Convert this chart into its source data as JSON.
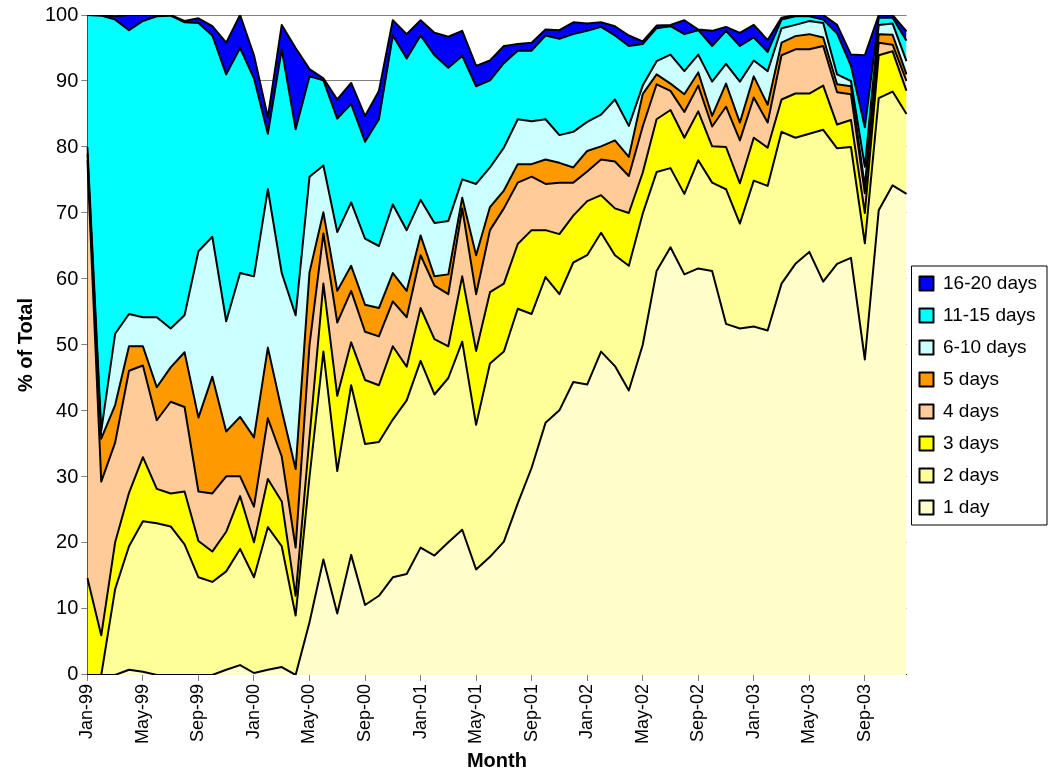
{
  "chart_data": {
    "type": "area",
    "stacked": true,
    "xlabel": "Month",
    "ylabel": "% of Total",
    "legend": "right",
    "grid": "y",
    "line_style": "solid",
    "marker": "none",
    "categories": [
      "Jan-99",
      null,
      null,
      null,
      "May-99",
      null,
      null,
      null,
      "Sep-99",
      null,
      null,
      null,
      "Jan-00",
      null,
      null,
      null,
      "May-00",
      null,
      null,
      null,
      "Sep-00",
      null,
      null,
      null,
      "Jan-01",
      null,
      null,
      null,
      "May-01",
      null,
      null,
      null,
      "Sep-01",
      null,
      null,
      null,
      "Jan-02",
      null,
      null,
      null,
      "May-02",
      null,
      null,
      null,
      "Sep-02",
      null,
      null,
      null,
      "Jan-03",
      null,
      null,
      null,
      "May-03",
      null,
      null,
      null,
      "Sep-03",
      null,
      null,
      null
    ],
    "ylim": [
      0,
      100
    ],
    "yticks": [
      0,
      10,
      20,
      30,
      40,
      50,
      60,
      70,
      80,
      90,
      100
    ],
    "series": [
      {
        "name": "1 day",
        "color": "#ffffcc",
        "values": [
          0,
          0,
          0,
          0.8,
          0.5,
          0,
          0,
          0,
          0,
          0,
          0.8,
          1.5,
          0.3,
          0.8,
          1.2,
          0,
          8,
          17.5,
          9.3,
          18.2,
          10.6,
          12,
          14.8,
          15.3,
          19.3,
          18.1,
          20.1,
          22,
          16,
          17.9,
          20.2,
          26,
          31.4,
          38.2,
          40.1,
          44.4,
          44,
          49,
          46.8,
          43.1,
          50,
          61.2,
          64.8,
          60.7,
          61.6,
          61.2,
          53.2,
          52.5,
          52.8,
          52.2,
          59.3,
          62.3,
          64.1,
          59.6,
          62.3,
          63.2,
          47.8,
          70.4,
          74.2,
          72.9
        ]
      },
      {
        "name": "2 days",
        "color": "#ffff99",
        "values": [
          0,
          0,
          13,
          18.7,
          22.8,
          23,
          22.5,
          19.8,
          14.8,
          14.1,
          14.9,
          17.6,
          14.5,
          21.6,
          18.3,
          9,
          22,
          31.5,
          21.6,
          25.7,
          24.4,
          23.3,
          23.9,
          26.3,
          28.3,
          24.4,
          24.9,
          28.5,
          21.9,
          29.3,
          28.8,
          29.5,
          23.3,
          22.1,
          17.6,
          18.1,
          19.6,
          18,
          16.8,
          18.9,
          19.9,
          15,
          12,
          12.2,
          16.4,
          13.4,
          20.4,
          15.9,
          22.1,
          21.9,
          23,
          19.1,
          17.9,
          23,
          17.5,
          16.8,
          17.6,
          17,
          14.2,
          12.1
        ]
      },
      {
        "name": "3 days",
        "color": "#ffff00",
        "values": [
          14.7,
          6,
          7.1,
          8.1,
          9.7,
          5.2,
          5,
          8,
          5.5,
          4.6,
          6,
          8,
          5.3,
          7.3,
          6.8,
          3,
          6,
          10.3,
          11.4,
          6.5,
          9.7,
          8.6,
          11.1,
          5.1,
          8,
          8.4,
          4.8,
          9.9,
          11.2,
          10.8,
          10.3,
          9.8,
          12.7,
          7.1,
          9.1,
          7.1,
          8.2,
          5.7,
          7.1,
          8,
          6.2,
          8,
          8.8,
          8.5,
          7.4,
          5.5,
          6.4,
          6.1,
          6.5,
          5.8,
          4.9,
          6.7,
          6.1,
          6.7,
          3.6,
          4.1,
          4.6,
          6.5,
          6.1,
          3.5
        ]
      },
      {
        "name": "4 days",
        "color": "#ffcc99",
        "values": [
          63.3,
          23.3,
          15.1,
          18.5,
          13.9,
          10.4,
          13.9,
          12.8,
          7.5,
          8.8,
          8.4,
          3,
          5.4,
          9.2,
          6.8,
          7.3,
          14,
          7.6,
          11.1,
          7.8,
          7.3,
          7.4,
          6.8,
          7.5,
          8,
          8.1,
          7.9,
          10.3,
          8.6,
          9.4,
          11.4,
          9.3,
          8.1,
          7,
          7.8,
          5,
          4.5,
          5.4,
          7.1,
          5.6,
          7,
          5.3,
          2.9,
          3.9,
          3.9,
          3,
          6.1,
          6.5,
          6.1,
          3.8,
          6.7,
          6.7,
          6.7,
          6,
          4.9,
          3.9,
          3,
          1.9,
          1,
          1.5
        ]
      },
      {
        "name": "5 days",
        "color": "#ff9900",
        "values": [
          1,
          6.5,
          5.7,
          3.7,
          2.9,
          5,
          5.2,
          8.3,
          11.2,
          17.7,
          6.8,
          9,
          10.5,
          10.7,
          7,
          11.9,
          11,
          3.2,
          4.8,
          3.8,
          4.1,
          4.3,
          4.3,
          4,
          3,
          1.4,
          3,
          1.6,
          5.9,
          3.5,
          2.7,
          2.8,
          1.9,
          3.7,
          3,
          2.3,
          3.1,
          2,
          3.2,
          2.9,
          4.9,
          1.5,
          1.1,
          2.7,
          2,
          1.6,
          3.5,
          2.7,
          3.2,
          2.7,
          1.9,
          2,
          2.3,
          1.3,
          1.2,
          1.2,
          1,
          1.3,
          1.5,
          1
        ]
      },
      {
        "name": "6-10 days",
        "color": "#ccffff",
        "values": [
          1,
          1.2,
          10.8,
          4.9,
          4.4,
          10.6,
          5.9,
          5.6,
          25.2,
          21.2,
          16.7,
          21.8,
          24.4,
          24,
          20.8,
          23.3,
          14.5,
          7.1,
          8.9,
          9.6,
          10,
          9.4,
          10.4,
          9.2,
          5.4,
          8.1,
          8.1,
          2.8,
          10.8,
          6,
          6.5,
          6.8,
          6.5,
          6.1,
          4.2,
          5.4,
          4.4,
          4.8,
          6.2,
          4.7,
          1.3,
          2,
          4.4,
          3.5,
          2.7,
          5.2,
          3,
          6.2,
          2.4,
          5.1,
          2.2,
          1.7,
          2,
          2.2,
          1.5,
          0.8,
          3,
          1.4,
          1.7,
          2
        ]
      },
      {
        "name": "11-15 days",
        "color": "#00ffff",
        "values": [
          20,
          62.9,
          47.6,
          43,
          44.9,
          45.6,
          47.4,
          44.4,
          34.6,
          30.5,
          37.4,
          34.1,
          30,
          8.4,
          33.9,
          28.2,
          15.2,
          12.9,
          17.2,
          14.9,
          14.7,
          19.2,
          25.6,
          26,
          24.9,
          25.4,
          23.2,
          18.7,
          14.8,
          13.2,
          12.8,
          10.4,
          10.7,
          12.7,
          14.6,
          14.8,
          13.8,
          13.3,
          9.7,
          12.1,
          6.3,
          5,
          4.3,
          5.6,
          3.7,
          5.4,
          5,
          5.4,
          3.5,
          2.9,
          1.3,
          1.3,
          0.7,
          0.5,
          6.2,
          2.3,
          6,
          1.1,
          0.9,
          3.1
        ]
      },
      {
        "name": "16-20 days",
        "color": "#0000ff",
        "values": [
          0,
          0.1,
          0.5,
          2.3,
          0.9,
          0.2,
          0.1,
          0.2,
          0.7,
          1.4,
          4.8,
          5,
          3.5,
          2.5,
          3.7,
          12.3,
          1.1,
          0.3,
          2.9,
          3.2,
          3.9,
          4.3,
          2.3,
          3.7,
          2.3,
          3.4,
          4.7,
          3.8,
          3.1,
          3,
          2.6,
          1,
          1.2,
          0.9,
          1.3,
          1.8,
          1.1,
          0.7,
          1.4,
          1.6,
          0.4,
          0.4,
          0.2,
          2.1,
          0.1,
          2.3,
          0.6,
          2,
          1.9,
          1.8,
          0.3,
          0.2,
          0.2,
          0.7,
          1.3,
          1.7,
          10.9,
          0.4,
          0.4,
          1.4
        ]
      }
    ]
  }
}
